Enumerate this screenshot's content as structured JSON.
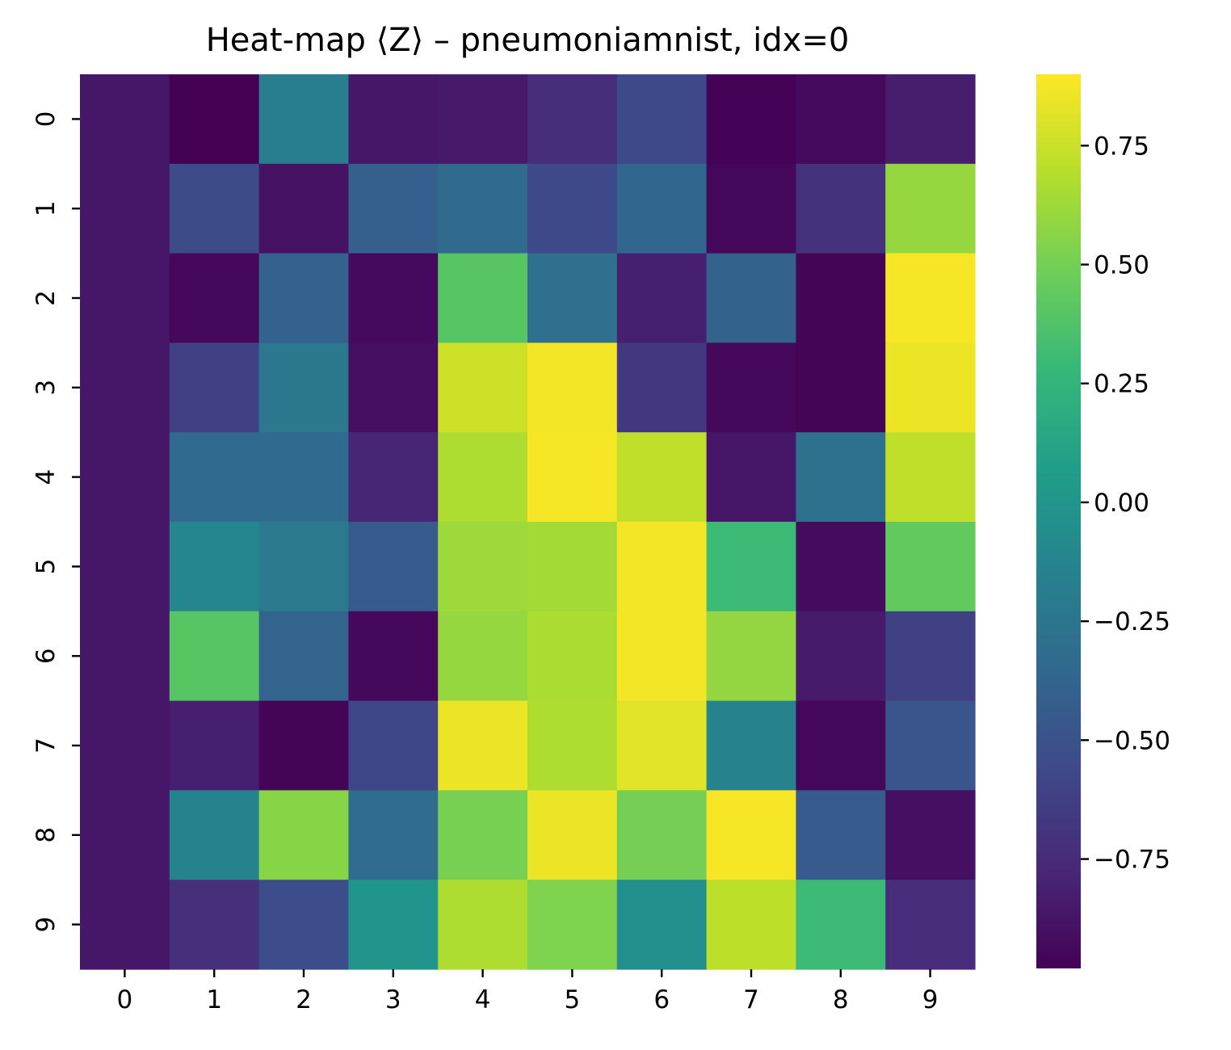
{
  "chart_data": {
    "type": "heatmap",
    "title": "Heat-map ⟨Z⟩ – pneumoniamnist, idx=0",
    "xlabel": "",
    "ylabel": "",
    "x_categories": [
      "0",
      "1",
      "2",
      "3",
      "4",
      "5",
      "6",
      "7",
      "8",
      "9"
    ],
    "y_categories": [
      "0",
      "1",
      "2",
      "3",
      "4",
      "5",
      "6",
      "7",
      "8",
      "9"
    ],
    "colormap": "viridis",
    "vmin": -0.98,
    "vmax": 0.9,
    "colorbar_ticks": [
      {
        "value": 0.75,
        "label": "0.75"
      },
      {
        "value": 0.5,
        "label": "0.50"
      },
      {
        "value": 0.25,
        "label": "0.25"
      },
      {
        "value": 0.0,
        "label": "0.00"
      },
      {
        "value": -0.25,
        "label": "−0.25"
      },
      {
        "value": -0.5,
        "label": "−0.50"
      },
      {
        "value": -0.75,
        "label": "−0.75"
      }
    ],
    "values": [
      [
        -0.86,
        -0.98,
        -0.18,
        -0.86,
        -0.85,
        -0.73,
        -0.56,
        -0.97,
        -0.93,
        -0.83
      ],
      [
        -0.86,
        -0.55,
        -0.89,
        -0.41,
        -0.33,
        -0.56,
        -0.36,
        -0.95,
        -0.71,
        0.6
      ],
      [
        -0.86,
        -0.94,
        -0.4,
        -0.93,
        0.4,
        -0.29,
        -0.82,
        -0.39,
        -0.96,
        0.88
      ],
      [
        -0.86,
        -0.62,
        -0.23,
        -0.91,
        0.76,
        0.87,
        -0.67,
        -0.94,
        -0.96,
        0.85
      ],
      [
        -0.86,
        -0.34,
        -0.34,
        -0.78,
        0.67,
        0.88,
        0.72,
        -0.86,
        -0.28,
        0.72
      ],
      [
        -0.86,
        -0.11,
        -0.22,
        -0.44,
        0.62,
        0.64,
        0.87,
        0.3,
        -0.92,
        0.44
      ],
      [
        -0.86,
        0.4,
        -0.38,
        -0.94,
        0.6,
        0.66,
        0.87,
        0.59,
        -0.84,
        -0.61
      ],
      [
        -0.86,
        -0.82,
        -0.96,
        -0.58,
        0.85,
        0.67,
        0.82,
        -0.14,
        -0.95,
        -0.48
      ],
      [
        -0.86,
        -0.14,
        0.56,
        -0.32,
        0.51,
        0.85,
        0.5,
        0.88,
        -0.44,
        -0.9
      ],
      [
        -0.86,
        -0.72,
        -0.54,
        0.0,
        0.67,
        0.53,
        -0.05,
        0.71,
        0.3,
        -0.74
      ]
    ]
  }
}
